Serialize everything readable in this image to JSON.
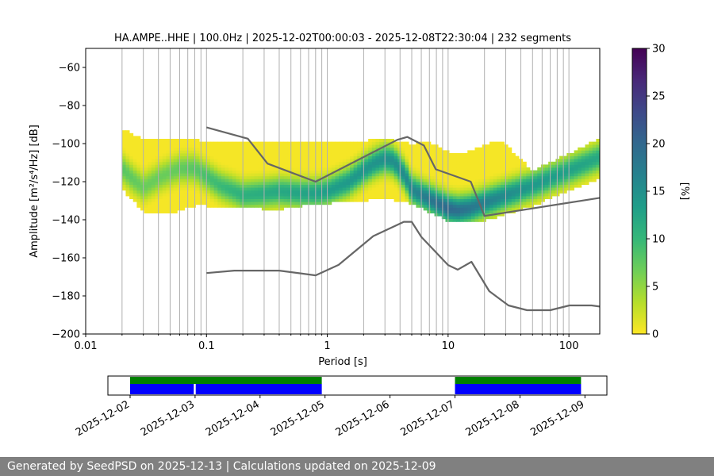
{
  "chart_data": {
    "type": "heatmap",
    "title": "HA.AMPE..HHE | 100.0Hz | 2025-12-02T00:00:03 - 2025-12-08T22:30:04 | 232 segments",
    "xlabel": "Period [s]",
    "ylabel": "Amplitude [m²/s⁴/Hz] [dB]",
    "x_scale": "log",
    "xlim": [
      0.01,
      180
    ],
    "ylim": [
      -200,
      -50
    ],
    "x_ticks": [
      {
        "value": 0.01,
        "label": "0.01"
      },
      {
        "value": 0.1,
        "label": "0.1"
      },
      {
        "value": 1,
        "label": "1"
      },
      {
        "value": 10,
        "label": "10"
      },
      {
        "value": 100,
        "label": "100"
      }
    ],
    "y_ticks": [
      {
        "value": -60,
        "label": "−60"
      },
      {
        "value": -80,
        "label": "−80"
      },
      {
        "value": -100,
        "label": "−100"
      },
      {
        "value": -120,
        "label": "−120"
      },
      {
        "value": -140,
        "label": "−140"
      },
      {
        "value": -160,
        "label": "−160"
      },
      {
        "value": -180,
        "label": "−180"
      },
      {
        "value": -200,
        "label": "−200"
      }
    ],
    "grid": "vertical period lines",
    "colorbar": {
      "label": "[%]",
      "range": [
        0,
        30
      ],
      "ticks": [
        {
          "value": 0,
          "label": "0"
        },
        {
          "value": 5,
          "label": "5"
        },
        {
          "value": 10,
          "label": "10"
        },
        {
          "value": 15,
          "label": "15"
        },
        {
          "value": 20,
          "label": "20"
        },
        {
          "value": 25,
          "label": "25"
        },
        {
          "value": 30,
          "label": "30"
        }
      ],
      "colormap": [
        "#fde725",
        "#b5de2b",
        "#6ece58",
        "#35b779",
        "#1f9e89",
        "#26828e",
        "#31688e",
        "#3e4989",
        "#482878",
        "#440154"
      ]
    },
    "mode_curve": {
      "x": [
        0.02,
        0.025,
        0.03,
        0.04,
        0.05,
        0.06,
        0.08,
        0.1,
        0.13,
        0.17,
        0.2,
        0.3,
        0.4,
        0.6,
        0.8,
        1.0,
        1.5,
        2.0,
        2.5,
        3.0,
        3.5,
        4.0,
        4.5,
        5.0,
        6.0,
        7.0,
        8.0,
        10,
        12,
        15,
        20,
        30,
        50,
        100,
        180
      ],
      "y": [
        -113,
        -119,
        -123,
        -118,
        -115,
        -113,
        -113,
        -117,
        -122,
        -125,
        -127,
        -126,
        -125,
        -126,
        -126,
        -125,
        -120,
        -114,
        -110,
        -108,
        -109,
        -113,
        -118,
        -124,
        -127,
        -129,
        -131,
        -134,
        -135,
        -134,
        -131,
        -127,
        -122,
        -114,
        -107
      ]
    },
    "probability_cells": [
      {
        "x": 0.02,
        "ymin": -123,
        "ymax": -93,
        "peak": 8
      },
      {
        "x": 0.03,
        "ymin": -135,
        "ymax": -98,
        "peak": 7
      },
      {
        "x": 0.05,
        "ymin": -136,
        "ymax": -98,
        "peak": 7
      },
      {
        "x": 0.08,
        "ymin": -132,
        "ymax": -98,
        "peak": 8
      },
      {
        "x": 0.1,
        "ymin": -132,
        "ymax": -100,
        "peak": 9
      },
      {
        "x": 0.2,
        "ymin": -133,
        "ymax": -100,
        "peak": 11
      },
      {
        "x": 0.4,
        "ymin": -134,
        "ymax": -100,
        "peak": 12
      },
      {
        "x": 0.8,
        "ymin": -131,
        "ymax": -100,
        "peak": 13
      },
      {
        "x": 1.5,
        "ymin": -130,
        "ymax": -100,
        "peak": 14
      },
      {
        "x": 3.0,
        "ymin": -128,
        "ymax": -98,
        "peak": 15
      },
      {
        "x": 5.0,
        "ymin": -131,
        "ymax": -101,
        "peak": 16
      },
      {
        "x": 10,
        "ymin": -140,
        "ymax": -97,
        "peak": 20
      },
      {
        "x": 20,
        "ymin": -140,
        "ymax": -90,
        "peak": 17
      },
      {
        "x": 50,
        "ymin": -132,
        "ymax": -115,
        "peak": 14
      },
      {
        "x": 100,
        "ymin": -124,
        "ymax": -106,
        "peak": 13
      },
      {
        "x": 180,
        "ymin": -118,
        "ymax": -98,
        "peak": 12
      }
    ],
    "noise_models": [
      {
        "name": "high",
        "x": [
          0.1,
          0.22,
          0.32,
          0.8,
          3.8,
          4.6,
          6.3,
          7.9,
          15.4,
          20,
          180
        ],
        "y": [
          -91.5,
          -97.4,
          -110.5,
          -120,
          -98,
          -96.5,
          -101,
          -113.5,
          -120,
          -138,
          -128.5
        ]
      },
      {
        "name": "low",
        "x": [
          0.1,
          0.17,
          0.4,
          0.8,
          1.24,
          2.4,
          4.3,
          5.0,
          6.0,
          10,
          12,
          15.6,
          21.9,
          31.6,
          45,
          70,
          101,
          154,
          180
        ],
        "y": [
          -168,
          -166.7,
          -166.7,
          -169.2,
          -163.7,
          -148.6,
          -141.1,
          -141.1,
          -149,
          -163.8,
          -166.2,
          -162.1,
          -177.5,
          -185,
          -187.5,
          -187.5,
          -185,
          -185,
          -185.6
        ]
      }
    ],
    "coverage": {
      "start": "2025-12-02",
      "end": "2025-12-09",
      "date_ticks": [
        "2025-12-02",
        "2025-12-03",
        "2025-12-04",
        "2025-12-05",
        "2025-12-06",
        "2025-12-07",
        "2025-12-08",
        "2025-12-09"
      ],
      "data_intervals": [
        {
          "start_day": 0.0,
          "end_day": 2.95
        },
        {
          "start_day": 5.0,
          "end_day": 6.94
        }
      ],
      "psd_intervals": [
        {
          "start_day": 0.0,
          "end_day": 0.98
        },
        {
          "start_day": 1.01,
          "end_day": 2.95
        },
        {
          "start_day": 5.0,
          "end_day": 6.94
        }
      ],
      "data_color": "#008000",
      "psd_color": "#0000ff"
    }
  },
  "footer": {
    "text": "Generated by SeedPSD on 2025-12-13 | Calculations updated on 2025-12-09"
  }
}
